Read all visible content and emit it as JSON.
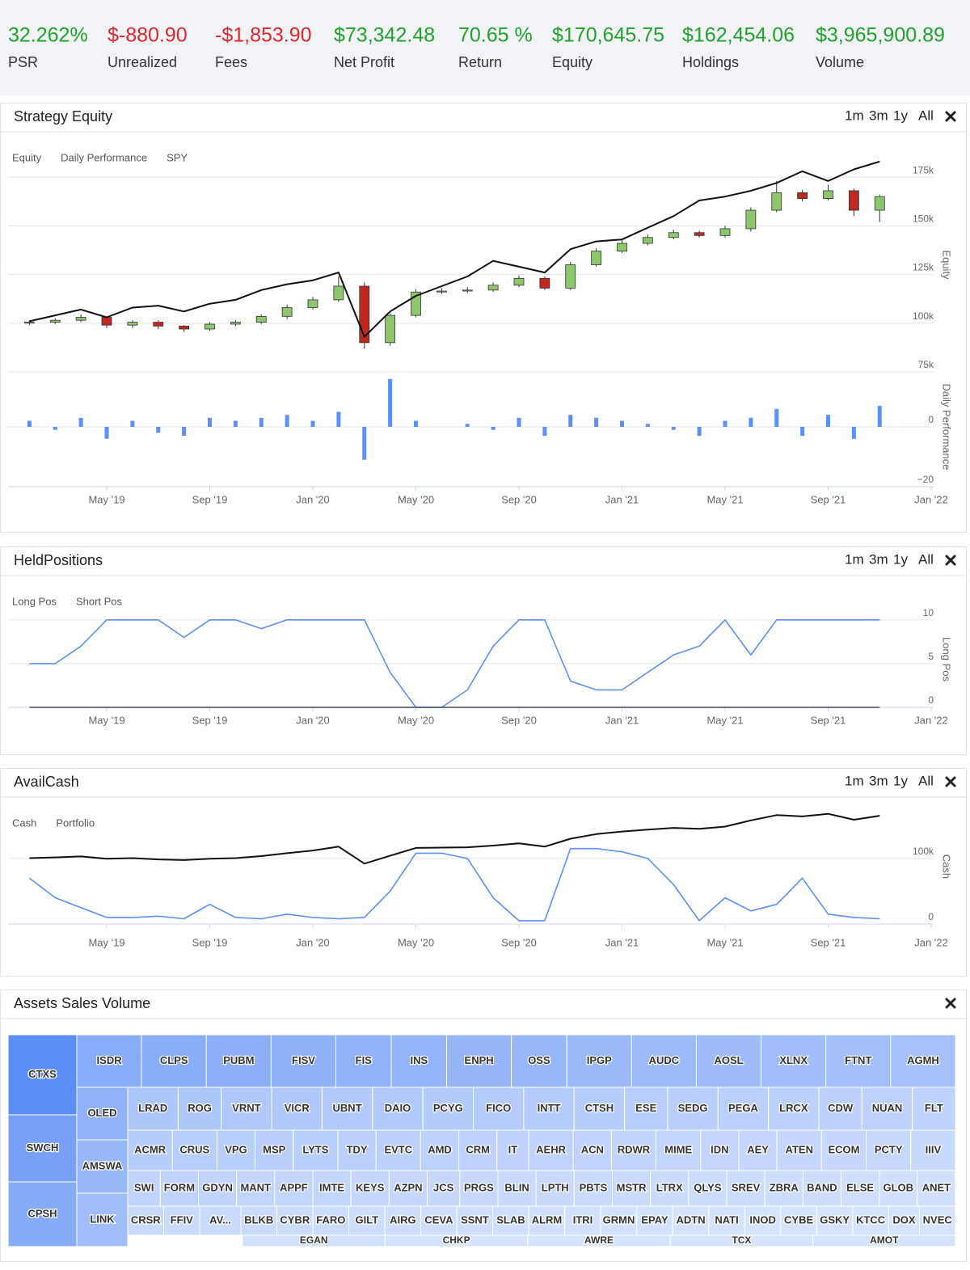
{
  "stats": [
    {
      "value": "32.262%",
      "label": "PSR",
      "color": "#1fa32a"
    },
    {
      "value": "$-880.90",
      "label": "Unrealized",
      "color": "#e0262a"
    },
    {
      "value": "-$1,853.90",
      "label": "Fees",
      "color": "#e0262a"
    },
    {
      "value": "$73,342.48",
      "label": "Net Profit",
      "color": "#1fa32a"
    },
    {
      "value": "70.65 %",
      "label": "Return",
      "color": "#1fa32a"
    },
    {
      "value": "$170,645.75",
      "label": "Equity",
      "color": "#1fa32a"
    },
    {
      "value": "$162,454.06",
      "label": "Holdings",
      "color": "#1fa32a"
    },
    {
      "value": "$3,965,900.89",
      "label": "Volume",
      "color": "#1fa32a"
    }
  ],
  "controls": [
    "1m",
    "3m",
    "1y",
    "All"
  ],
  "chart_data": [
    {
      "type": "stock",
      "title": "Strategy Equity",
      "grid": true,
      "x": [
        "2019-02",
        "2019-03",
        "2019-04",
        "2019-05",
        "2019-06",
        "2019-07",
        "2019-08",
        "2019-09",
        "2019-10",
        "2019-11",
        "2019-12",
        "2020-01",
        "2020-02",
        "2020-03",
        "2020-04",
        "2020-05",
        "2020-06",
        "2020-07",
        "2020-08",
        "2020-09",
        "2020-10",
        "2020-11",
        "2020-12",
        "2021-01",
        "2021-02",
        "2021-03",
        "2021-04",
        "2021-05",
        "2021-06",
        "2021-07",
        "2021-08",
        "2021-09",
        "2021-10",
        "2021-11"
      ],
      "xlim": [
        "2019-01",
        "2022-01"
      ],
      "xticks": [
        {
          "value": "2019-05",
          "label": "May '19"
        },
        {
          "value": "2019-09",
          "label": "Sep '19"
        },
        {
          "value": "2020-01",
          "label": "Jan '20"
        },
        {
          "value": "2020-05",
          "label": "May '20"
        },
        {
          "value": "2020-09",
          "label": "Sep '20"
        },
        {
          "value": "2021-01",
          "label": "Jan '21"
        },
        {
          "value": "2021-05",
          "label": "May '21"
        },
        {
          "value": "2021-09",
          "label": "Sep '21"
        },
        {
          "value": "2022-01",
          "label": "Jan '22"
        }
      ],
      "panes": [
        {
          "axis_title": "Equity",
          "ylim": [
            75000,
            185000
          ],
          "yticks": [
            {
              "value": 75000,
              "label": "75k"
            },
            {
              "value": 100000,
              "label": "100k"
            },
            {
              "value": 125000,
              "label": "125k"
            },
            {
              "value": 150000,
              "label": "150k"
            },
            {
              "value": 175000,
              "label": "175k"
            }
          ]
        },
        {
          "axis_title": "Daily Performance",
          "ylim": [
            -20,
            20
          ],
          "yticks": [
            {
              "value": -20,
              "label": "−20"
            },
            0
          ]
        }
      ],
      "series": [
        {
          "name": "Equity",
          "type": "candlestick",
          "pane": 0,
          "up_color": "#8cc66d",
          "down_color": "#c0281e",
          "open": [
            100000,
            100500,
            101500,
            103000,
            99000,
            100500,
            98500,
            97000,
            99500,
            100500,
            103500,
            108000,
            112000,
            119000,
            90000,
            104000,
            116000,
            116500,
            117000,
            119500,
            123000,
            118000,
            130000,
            137000,
            141000,
            144000,
            146500,
            145000,
            148500,
            158000,
            167000,
            164000,
            168000,
            158000
          ],
          "high": [
            101500,
            102500,
            104500,
            103500,
            101500,
            101500,
            99000,
            100500,
            101500,
            104500,
            109500,
            113500,
            124000,
            121000,
            105000,
            117500,
            118000,
            118500,
            121000,
            124500,
            124000,
            131500,
            138500,
            142500,
            145500,
            148000,
            147500,
            150000,
            159500,
            173000,
            168500,
            171000,
            169000,
            166000
          ],
          "low": [
            99000,
            99500,
            100500,
            97500,
            97500,
            97000,
            95500,
            96000,
            98500,
            99500,
            102000,
            107000,
            111000,
            87000,
            88500,
            103000,
            115000,
            115500,
            116000,
            118500,
            117000,
            117000,
            129000,
            136000,
            140000,
            143000,
            144000,
            144000,
            147000,
            157000,
            162500,
            163000,
            155000,
            152000
          ],
          "close": [
            100500,
            101500,
            103000,
            99000,
            100500,
            98500,
            97000,
            99500,
            100500,
            103500,
            108000,
            112000,
            119000,
            90000,
            104000,
            116000,
            116500,
            117000,
            119500,
            123000,
            118000,
            130000,
            137000,
            141000,
            144000,
            146500,
            145000,
            148500,
            158000,
            167000,
            164000,
            168000,
            158000,
            165000
          ]
        },
        {
          "name": "Daily Performance",
          "type": "bar",
          "pane": 1,
          "color": "#5b8ff9",
          "values": [
            2,
            -1,
            3,
            -4,
            2,
            -2,
            -3,
            3,
            2,
            3,
            4,
            2,
            5,
            -11,
            16,
            2,
            0,
            1,
            -1,
            3,
            -3,
            4,
            3,
            2,
            1,
            -1,
            -3,
            2,
            3,
            6,
            -3,
            4,
            -4,
            7
          ]
        },
        {
          "name": "SPY",
          "type": "line",
          "pane": 0,
          "color": "#111111",
          "values": [
            101000,
            104000,
            107000,
            103000,
            108000,
            109000,
            106000,
            110000,
            112000,
            117000,
            120000,
            122000,
            126000,
            93000,
            106000,
            114000,
            119000,
            124000,
            132000,
            129000,
            126000,
            138000,
            142000,
            143000,
            149000,
            155000,
            163000,
            165000,
            168000,
            172000,
            178000,
            173000,
            179000,
            183000
          ]
        }
      ]
    },
    {
      "type": "stock",
      "title": "HeldPositions",
      "grid": true,
      "x": [
        "2019-02",
        "2019-03",
        "2019-04",
        "2019-05",
        "2019-06",
        "2019-07",
        "2019-08",
        "2019-09",
        "2019-10",
        "2019-11",
        "2019-12",
        "2020-01",
        "2020-02",
        "2020-03",
        "2020-04",
        "2020-05",
        "2020-06",
        "2020-07",
        "2020-08",
        "2020-09",
        "2020-10",
        "2020-11",
        "2020-12",
        "2021-01",
        "2021-02",
        "2021-03",
        "2021-04",
        "2021-05",
        "2021-06",
        "2021-07",
        "2021-08",
        "2021-09",
        "2021-10",
        "2021-11"
      ],
      "xlim": [
        "2019-01",
        "2022-01"
      ],
      "xticks": [
        {
          "value": "2019-05",
          "label": "May '19"
        },
        {
          "value": "2019-09",
          "label": "Sep '19"
        },
        {
          "value": "2020-01",
          "label": "Jan '20"
        },
        {
          "value": "2020-05",
          "label": "May '20"
        },
        {
          "value": "2020-09",
          "label": "Sep '20"
        },
        {
          "value": "2021-01",
          "label": "Jan '21"
        },
        {
          "value": "2021-05",
          "label": "May '21"
        },
        {
          "value": "2021-09",
          "label": "Sep '21"
        },
        {
          "value": "2022-01",
          "label": "Jan '22"
        }
      ],
      "panes": [
        {
          "axis_title": "Long Pos",
          "ylim": [
            0,
            11
          ],
          "yticks": [
            0,
            5,
            10
          ]
        }
      ],
      "series": [
        {
          "name": "Long Pos",
          "type": "line",
          "pane": 0,
          "color": "#5b8ff9",
          "values": [
            5,
            5,
            7,
            10,
            10,
            10,
            8,
            10,
            10,
            9,
            10,
            10,
            10,
            10,
            4,
            0,
            0,
            2,
            7,
            10,
            10,
            3,
            2,
            2,
            4,
            6,
            7,
            10,
            6,
            10,
            10,
            10,
            10,
            10
          ]
        },
        {
          "name": "Short Pos",
          "type": "line",
          "pane": 0,
          "color": "#3d4a5c",
          "values": [
            0,
            0,
            0,
            0,
            0,
            0,
            0,
            0,
            0,
            0,
            0,
            0,
            0,
            0,
            0,
            0,
            0,
            0,
            0,
            0,
            0,
            0,
            0,
            0,
            0,
            0,
            0,
            0,
            0,
            0,
            0,
            0,
            0,
            0
          ]
        }
      ]
    },
    {
      "type": "stock",
      "title": "AvailCash",
      "grid": true,
      "x": [
        "2019-02",
        "2019-03",
        "2019-04",
        "2019-05",
        "2019-06",
        "2019-07",
        "2019-08",
        "2019-09",
        "2019-10",
        "2019-11",
        "2019-12",
        "2020-01",
        "2020-02",
        "2020-03",
        "2020-04",
        "2020-05",
        "2020-06",
        "2020-07",
        "2020-08",
        "2020-09",
        "2020-10",
        "2020-11",
        "2020-12",
        "2021-01",
        "2021-02",
        "2021-03",
        "2021-04",
        "2021-05",
        "2021-06",
        "2021-07",
        "2021-08",
        "2021-09",
        "2021-10",
        "2021-11"
      ],
      "xlim": [
        "2019-01",
        "2022-01"
      ],
      "xticks": [
        {
          "value": "2019-05",
          "label": "May '19"
        },
        {
          "value": "2019-09",
          "label": "Sep '19"
        },
        {
          "value": "2020-01",
          "label": "Jan '20"
        },
        {
          "value": "2020-05",
          "label": "May '20"
        },
        {
          "value": "2020-09",
          "label": "Sep '20"
        },
        {
          "value": "2021-01",
          "label": "Jan '21"
        },
        {
          "value": "2021-05",
          "label": "May '21"
        },
        {
          "value": "2021-09",
          "label": "Sep '21"
        },
        {
          "value": "2022-01",
          "label": "Jan '22"
        }
      ],
      "panes": [
        {
          "axis_title": "Cash",
          "ylim": [
            0,
            175000
          ],
          "yticks": [
            0,
            {
              "value": 100000,
              "label": "100k"
            }
          ]
        }
      ],
      "series": [
        {
          "name": "Cash",
          "type": "line",
          "pane": 0,
          "color": "#5b8ff9",
          "values": [
            70000,
            40000,
            25000,
            10000,
            10000,
            12000,
            8000,
            30000,
            10000,
            8000,
            15000,
            10000,
            8000,
            10000,
            50000,
            108000,
            108000,
            100000,
            40000,
            5000,
            5000,
            115000,
            115000,
            110000,
            100000,
            60000,
            5000,
            40000,
            20000,
            30000,
            70000,
            15000,
            10000,
            8000
          ]
        },
        {
          "name": "Portfolio",
          "type": "line",
          "pane": 0,
          "color": "#111111",
          "values": [
            100500,
            101500,
            103000,
            99500,
            100500,
            98500,
            97500,
            99500,
            100500,
            103500,
            108000,
            112000,
            118000,
            92000,
            104000,
            116000,
            116500,
            117000,
            119500,
            123000,
            118000,
            130000,
            137000,
            141000,
            144000,
            146500,
            145000,
            148500,
            158000,
            166000,
            164000,
            168000,
            159000,
            165000
          ]
        }
      ]
    }
  ],
  "treemap": {
    "title": "Assets Sales Volume",
    "left": [
      "CTXS",
      "SWCH",
      "CPSH"
    ],
    "side": [
      "OLED",
      "AMSWA",
      "LINK"
    ],
    "rows": [
      [
        "ISDR",
        "CLPS",
        "PUBM",
        "FISV",
        "FIS",
        "INS",
        "ENPH",
        "OSS",
        "IPGP",
        "AUDC",
        "AOSL",
        "XLNX",
        "FTNT",
        "AGMH"
      ],
      [
        "LRAD",
        "ROG",
        "VRNT",
        "VICR",
        "UBNT",
        "DAIO",
        "PCYG",
        "FICO",
        "INTT",
        "CTSH",
        "ESE",
        "SEDG",
        "PEGA",
        "LRCX",
        "CDW",
        "NUAN",
        "FLT"
      ],
      [
        "ACMR",
        "CRUS",
        "VPG",
        "MSP",
        "LYTS",
        "TDY",
        "EVTC",
        "AMD",
        "CRM",
        "IT",
        "AEHR",
        "ACN",
        "RDWR",
        "MIME",
        "IDN",
        "AEY",
        "ATEN",
        "ECOM",
        "PCTY",
        "IIIV"
      ],
      [
        "SWI",
        "FORM",
        "GDYN",
        "MANT",
        "APPF",
        "IMTE",
        "KEYS",
        "AZPN",
        "JCS",
        "PRGS",
        "BLIN",
        "LPTH",
        "PBTS",
        "MSTR",
        "LTRX",
        "QLYS",
        "SREV",
        "ZBRA",
        "BAND",
        "ELSE",
        "GLOB",
        "ANET"
      ],
      [
        "CRSR",
        "FFIV",
        "AV...",
        "BLKB",
        "CYBR",
        "FARO",
        "GILT",
        "AIRG",
        "CEVA",
        "SSNT",
        "SLAB",
        "ALRM",
        "ITRI",
        "GRMN",
        "EPAY",
        "ADTN",
        "NATI",
        "INOD",
        "CYBE",
        "GSKY",
        "KTCC",
        "DOX",
        "NVEC"
      ],
      [
        "EGAN",
        "CHKP",
        "AWRE",
        "TCX",
        "AMOT"
      ]
    ]
  }
}
